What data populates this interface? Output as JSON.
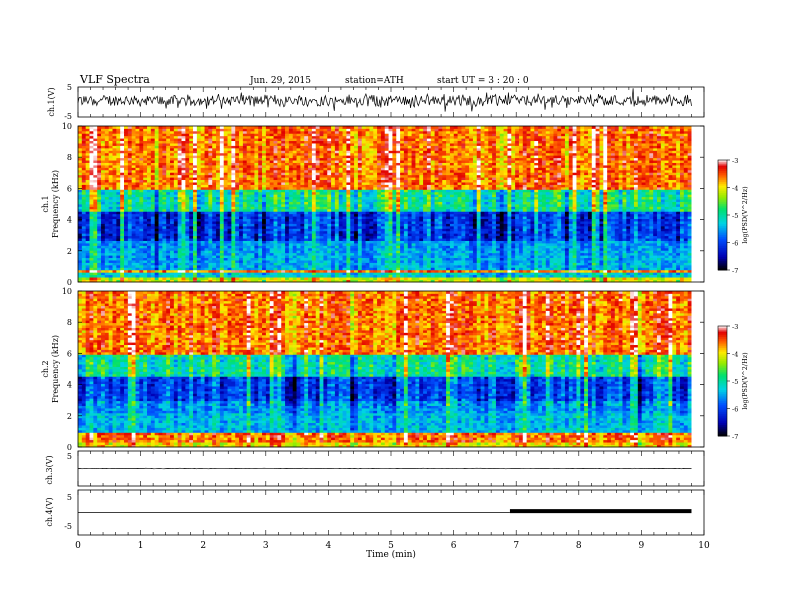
{
  "header": {
    "title": "VLF  Spectra",
    "date": "Jun. 29, 2015",
    "station": "station=ATH",
    "start": "start  UT  =   3  : 20 : 0"
  },
  "chart_data": [
    {
      "type": "line",
      "name": "ch1-waveform",
      "ylabel": "ch.1(V)",
      "ylim": [
        -5,
        5
      ],
      "yticks": [
        "5",
        "-5"
      ],
      "xlim": [
        0,
        10
      ],
      "x_data_extent": [
        0,
        9.8
      ],
      "description_values": {
        "mean_v": 0.5,
        "typical_range_v": [
          -1.5,
          3.0
        ]
      }
    },
    {
      "type": "heatmap",
      "name": "ch1-spectrogram",
      "ylabel": "ch.1\nFrequency  (kHz)",
      "ylim": [
        0,
        10
      ],
      "yticks": [
        "0",
        "2",
        "4",
        "6",
        "8",
        "10"
      ],
      "xlim": [
        0,
        10
      ],
      "x_data_extent": [
        0,
        9.8
      ],
      "colorbar": {
        "label": "log(PSD(V^2/Hz)",
        "range": [
          -7,
          -3
        ],
        "ticks": [
          "-3",
          "-4",
          "-5",
          "-6",
          "-7"
        ]
      },
      "bands_khz_logpsd": [
        [
          0,
          0.3,
          -4.2
        ],
        [
          0.3,
          0.6,
          -5.3
        ],
        [
          0.6,
          0.8,
          -3.6
        ],
        [
          0.8,
          2.0,
          -5.5
        ],
        [
          2.0,
          2.6,
          -5.6
        ],
        [
          2.6,
          4.6,
          -6.1
        ],
        [
          4.6,
          6.0,
          -5.0
        ],
        [
          6.0,
          10.0,
          -3.6
        ]
      ]
    },
    {
      "type": "heatmap",
      "name": "ch2-spectrogram",
      "ylabel": "ch.2\nFrequency  (kHz)",
      "ylim": [
        0,
        10
      ],
      "yticks": [
        "0",
        "2",
        "4",
        "6",
        "8",
        "10"
      ],
      "xlim": [
        0,
        10
      ],
      "x_data_extent": [
        0,
        9.8
      ],
      "colorbar": {
        "label": "log(PSD(V^2/Hz)",
        "range": [
          -7,
          -3
        ],
        "ticks": [
          "-3",
          "-4",
          "-5",
          "-6",
          "-7"
        ]
      },
      "bands_khz_logpsd": [
        [
          0,
          0.3,
          -4.0
        ],
        [
          0.3,
          0.9,
          -3.6
        ],
        [
          0.9,
          2.2,
          -5.4
        ],
        [
          2.2,
          3.0,
          -5.6
        ],
        [
          3.0,
          4.6,
          -6.0
        ],
        [
          4.6,
          6.0,
          -5.0
        ],
        [
          6.0,
          10.0,
          -3.6
        ]
      ]
    },
    {
      "type": "line",
      "name": "ch3-waveform",
      "ylabel": "ch.3(V)",
      "ylim": [
        -5,
        5
      ],
      "yticks": [
        "5"
      ],
      "xlim": [
        0,
        10
      ],
      "x": [
        0,
        9.8
      ],
      "y": [
        0,
        0
      ]
    },
    {
      "type": "line",
      "name": "ch4-waveform",
      "ylabel": "ch.4(V)",
      "ylim": [
        -5,
        5
      ],
      "yticks": [
        "5",
        "-5"
      ],
      "xlim": [
        0,
        10
      ],
      "x": [
        0,
        6.9,
        6.9,
        9.8
      ],
      "y": [
        0,
        0,
        0.3,
        0.3
      ],
      "thick_segment_x": [
        6.9,
        9.8
      ]
    }
  ],
  "x_axis": {
    "label": "Time  (min)",
    "ticks": [
      "0",
      "1",
      "2",
      "3",
      "4",
      "5",
      "6",
      "7",
      "8",
      "9",
      "10"
    ]
  }
}
